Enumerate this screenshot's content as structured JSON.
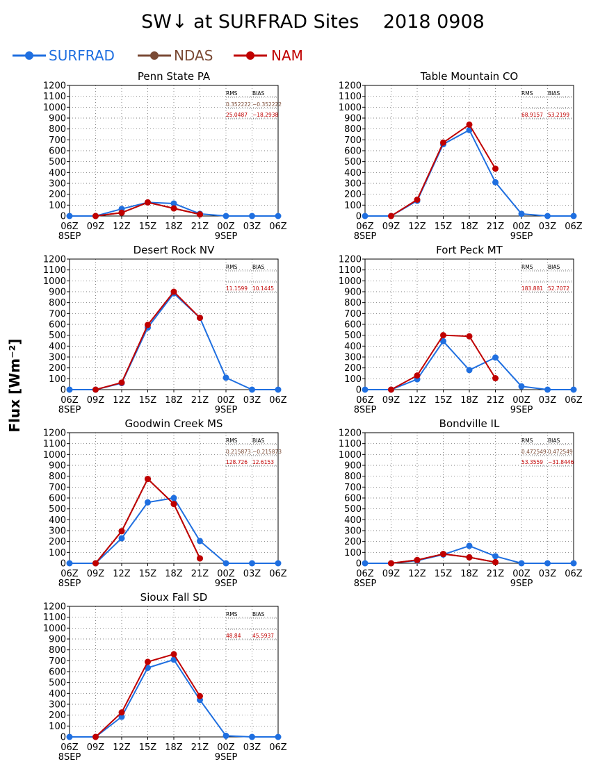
{
  "title": "SW↓ at SURFRAD Sites    2018 0908",
  "ylabel": "Flux [Wm⁻²]",
  "colors": {
    "SURFRAD": "#1f6fe0",
    "NDAS": "#7a4a35",
    "NAM": "#c00000",
    "stats_header": "#000000"
  },
  "legend": [
    {
      "name": "SURFRAD",
      "color": "#1f6fe0"
    },
    {
      "name": "NDAS",
      "color": "#7a4a35"
    },
    {
      "name": "NAM",
      "color": "#c00000"
    }
  ],
  "stats_headers": [
    "RMS",
    "BIAS"
  ],
  "chart_data": [
    {
      "type": "line",
      "title": "Penn State PA",
      "x": [
        "06Z",
        "09Z",
        "12Z",
        "15Z",
        "18Z",
        "21Z",
        "00Z",
        "03Z",
        "06Z"
      ],
      "x_date_labels": [
        "8SEP",
        "9SEP"
      ],
      "ylim": [
        0,
        1200
      ],
      "yticks": [
        0,
        100,
        200,
        300,
        400,
        500,
        600,
        700,
        800,
        900,
        1000,
        1100,
        1200
      ],
      "grid": true,
      "series": [
        {
          "name": "SURFRAD",
          "values": [
            0,
            0,
            65,
            125,
            115,
            20,
            0,
            0,
            0
          ]
        },
        {
          "name": "NDAS",
          "values": [
            null,
            0,
            30,
            125,
            70,
            15,
            null,
            null,
            null
          ]
        },
        {
          "name": "NAM",
          "values": [
            null,
            0,
            30,
            125,
            70,
            15,
            null,
            null,
            null
          ]
        }
      ],
      "stats": [
        {
          "name": "NDAS",
          "rms": "0.352222",
          "bias": "−0.352222"
        },
        {
          "name": "NAM",
          "rms": "25.0487",
          "bias": "−18.2938"
        }
      ]
    },
    {
      "type": "line",
      "title": "Table Mountain CO",
      "x": [
        "06Z",
        "09Z",
        "12Z",
        "15Z",
        "18Z",
        "21Z",
        "00Z",
        "03Z",
        "06Z"
      ],
      "x_date_labels": [
        "8SEP",
        "9SEP"
      ],
      "ylim": [
        0,
        1200
      ],
      "yticks": [
        0,
        100,
        200,
        300,
        400,
        500,
        600,
        700,
        800,
        900,
        1000,
        1100,
        1200
      ],
      "grid": true,
      "series": [
        {
          "name": "SURFRAD",
          "values": [
            0,
            0,
            140,
            660,
            790,
            310,
            20,
            0,
            0
          ]
        },
        {
          "name": "NDAS",
          "values": [
            null,
            null,
            null,
            null,
            null,
            null,
            null,
            null,
            null
          ]
        },
        {
          "name": "NAM",
          "values": [
            null,
            0,
            150,
            675,
            840,
            435,
            null,
            null,
            null
          ]
        }
      ],
      "stats": [
        {
          "name": "NDAS",
          "rms": "",
          "bias": ""
        },
        {
          "name": "NAM",
          "rms": "68.9157",
          "bias": "53.2199"
        }
      ]
    },
    {
      "type": "line",
      "title": "Desert Rock NV",
      "x": [
        "06Z",
        "09Z",
        "12Z",
        "15Z",
        "18Z",
        "21Z",
        "00Z",
        "03Z",
        "06Z"
      ],
      "x_date_labels": [
        "8SEP",
        "9SEP"
      ],
      "ylim": [
        0,
        1200
      ],
      "yticks": [
        0,
        100,
        200,
        300,
        400,
        500,
        600,
        700,
        800,
        900,
        1000,
        1100,
        1200
      ],
      "grid": true,
      "series": [
        {
          "name": "SURFRAD",
          "values": [
            0,
            0,
            60,
            570,
            885,
            660,
            110,
            0,
            0
          ]
        },
        {
          "name": "NDAS",
          "values": [
            null,
            null,
            null,
            null,
            null,
            null,
            null,
            null,
            null
          ]
        },
        {
          "name": "NAM",
          "values": [
            null,
            0,
            65,
            595,
            900,
            660,
            null,
            null,
            null
          ]
        }
      ],
      "stats": [
        {
          "name": "NDAS",
          "rms": "",
          "bias": ""
        },
        {
          "name": "NAM",
          "rms": "11.1599",
          "bias": "10.1445"
        }
      ]
    },
    {
      "type": "line",
      "title": "Fort Peck MT",
      "x": [
        "06Z",
        "09Z",
        "12Z",
        "15Z",
        "18Z",
        "21Z",
        "00Z",
        "03Z",
        "06Z"
      ],
      "x_date_labels": [
        "8SEP",
        "9SEP"
      ],
      "ylim": [
        0,
        1200
      ],
      "yticks": [
        0,
        100,
        200,
        300,
        400,
        500,
        600,
        700,
        800,
        900,
        1000,
        1100,
        1200
      ],
      "grid": true,
      "series": [
        {
          "name": "SURFRAD",
          "values": [
            0,
            0,
            95,
            445,
            180,
            295,
            30,
            0,
            0
          ]
        },
        {
          "name": "NDAS",
          "values": [
            null,
            null,
            null,
            null,
            null,
            null,
            null,
            null,
            null
          ]
        },
        {
          "name": "NAM",
          "values": [
            null,
            0,
            130,
            500,
            490,
            105,
            null,
            null,
            null
          ]
        }
      ],
      "stats": [
        {
          "name": "NDAS",
          "rms": "",
          "bias": ""
        },
        {
          "name": "NAM",
          "rms": "183.881",
          "bias": "52.7072"
        }
      ]
    },
    {
      "type": "line",
      "title": "Goodwin Creek MS",
      "x": [
        "06Z",
        "09Z",
        "12Z",
        "15Z",
        "18Z",
        "21Z",
        "00Z",
        "03Z",
        "06Z"
      ],
      "x_date_labels": [
        "8SEP",
        "9SEP"
      ],
      "ylim": [
        0,
        1200
      ],
      "yticks": [
        0,
        100,
        200,
        300,
        400,
        500,
        600,
        700,
        800,
        900,
        1000,
        1100,
        1200
      ],
      "grid": true,
      "series": [
        {
          "name": "SURFRAD",
          "values": [
            0,
            0,
            230,
            560,
            600,
            205,
            0,
            0,
            0
          ]
        },
        {
          "name": "NDAS",
          "values": [
            null,
            0,
            295,
            775,
            545,
            45,
            null,
            null,
            null
          ]
        },
        {
          "name": "NAM",
          "values": [
            null,
            0,
            295,
            775,
            545,
            45,
            null,
            null,
            null
          ]
        }
      ],
      "stats": [
        {
          "name": "NDAS",
          "rms": "0.215873",
          "bias": "−0.215873"
        },
        {
          "name": "NAM",
          "rms": "128.726",
          "bias": "12.6153"
        }
      ]
    },
    {
      "type": "line",
      "title": "Bondville IL",
      "x": [
        "06Z",
        "09Z",
        "12Z",
        "15Z",
        "18Z",
        "21Z",
        "00Z",
        "03Z",
        "06Z"
      ],
      "x_date_labels": [
        "8SEP",
        "9SEP"
      ],
      "ylim": [
        0,
        1200
      ],
      "yticks": [
        0,
        100,
        200,
        300,
        400,
        500,
        600,
        700,
        800,
        900,
        1000,
        1100,
        1200
      ],
      "grid": true,
      "series": [
        {
          "name": "SURFRAD",
          "values": [
            0,
            0,
            25,
            80,
            160,
            65,
            0,
            0,
            0
          ]
        },
        {
          "name": "NDAS",
          "values": [
            null,
            0,
            30,
            85,
            55,
            10,
            null,
            null,
            null
          ]
        },
        {
          "name": "NAM",
          "values": [
            null,
            0,
            30,
            85,
            55,
            10,
            null,
            null,
            null
          ]
        }
      ],
      "stats": [
        {
          "name": "NDAS",
          "rms": "0.472549",
          "bias": "0.472549"
        },
        {
          "name": "NAM",
          "rms": "53.3559",
          "bias": "−31.8446"
        }
      ]
    },
    {
      "type": "line",
      "title": "Sioux Fall SD",
      "x": [
        "06Z",
        "09Z",
        "12Z",
        "15Z",
        "18Z",
        "21Z",
        "00Z",
        "03Z",
        "06Z"
      ],
      "x_date_labels": [
        "8SEP",
        "9SEP"
      ],
      "ylim": [
        0,
        1200
      ],
      "yticks": [
        0,
        100,
        200,
        300,
        400,
        500,
        600,
        700,
        800,
        900,
        1000,
        1100,
        1200
      ],
      "grid": true,
      "series": [
        {
          "name": "SURFRAD",
          "values": [
            0,
            0,
            185,
            635,
            710,
            340,
            10,
            0,
            0
          ]
        },
        {
          "name": "NDAS",
          "values": [
            null,
            null,
            null,
            null,
            null,
            null,
            null,
            null,
            null
          ]
        },
        {
          "name": "NAM",
          "values": [
            null,
            0,
            225,
            690,
            760,
            375,
            null,
            null,
            null
          ]
        }
      ],
      "stats": [
        {
          "name": "NDAS",
          "rms": "",
          "bias": ""
        },
        {
          "name": "NAM",
          "rms": "48.84",
          "bias": "45.5937"
        }
      ]
    }
  ]
}
